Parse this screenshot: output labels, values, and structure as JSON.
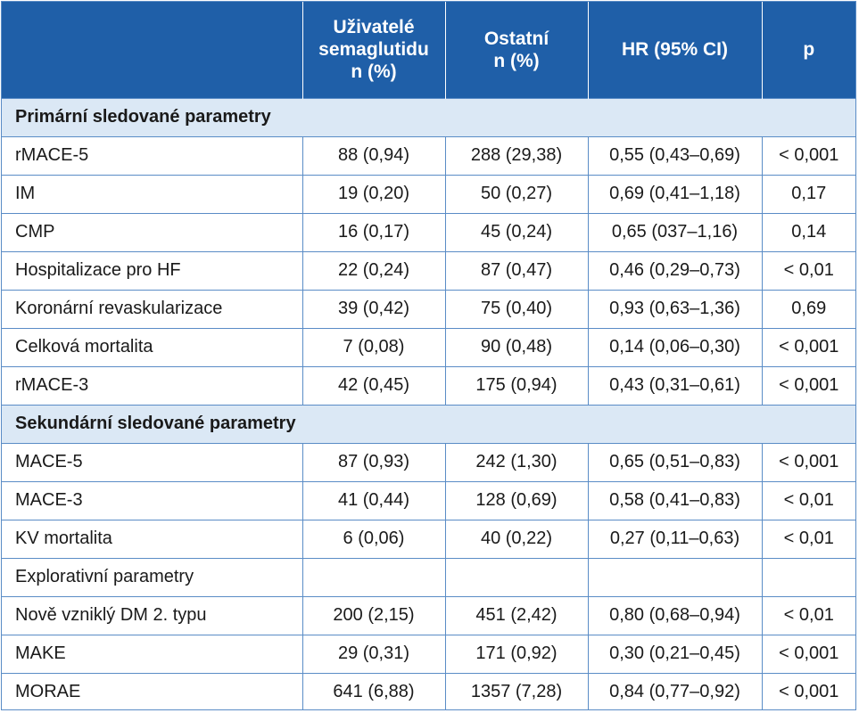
{
  "header": {
    "col0": "",
    "col1_lines": [
      "Uživatelé",
      "semaglutidu",
      "n (%)"
    ],
    "col2_lines": [
      "Ostatní",
      "n (%)"
    ],
    "col3": "HR (95% CI)",
    "col4": "p"
  },
  "sections": [
    {
      "title": "Primární sledované parametry",
      "rows": [
        {
          "label": "rMACE-5",
          "users": "88 (0,94)",
          "others": "288 (29,38)",
          "hr": "0,55 (0,43–0,69)",
          "p": "< 0,001"
        },
        {
          "label": "IM",
          "users": "19 (0,20)",
          "others": "50 (0,27)",
          "hr": "0,69 (0,41–1,18)",
          "p": "0,17"
        },
        {
          "label": "CMP",
          "users": "16 (0,17)",
          "others": "45 (0,24)",
          "hr": "0,65 (037–1,16)",
          "p": "0,14"
        },
        {
          "label": "Hospitalizace pro HF",
          "users": "22 (0,24)",
          "others": "87 (0,47)",
          "hr": "0,46 (0,29–0,73)",
          "p": "< 0,01"
        },
        {
          "label": "Koronární revaskularizace",
          "users": "39 (0,42)",
          "others": "75 (0,40)",
          "hr": "0,93 (0,63–1,36)",
          "p": "0,69"
        },
        {
          "label": "Celková mortalita",
          "users": "7 (0,08)",
          "others": "90 (0,48)",
          "hr": "0,14 (0,06–0,30)",
          "p": "< 0,001"
        },
        {
          "label": "rMACE-3",
          "users": "42 (0,45)",
          "others": "175 (0,94)",
          "hr": "0,43 (0,31–0,61)",
          "p": "< 0,001"
        }
      ]
    },
    {
      "title": "Sekundární sledované parametry",
      "rows": [
        {
          "label": "MACE-5",
          "users": "87 (0,93)",
          "others": "242 (1,30)",
          "hr": "0,65 (0,51–0,83)",
          "p": "< 0,001"
        },
        {
          "label": "MACE-3",
          "users": "41 (0,44)",
          "others": "128 (0,69)",
          "hr": "0,58 (0,41–0,83)",
          "p": "< 0,01"
        },
        {
          "label": "KV mortalita",
          "users": "6 (0,06)",
          "others": "40 (0,22)",
          "hr": "0,27 (0,11–0,63)",
          "p": "< 0,01"
        },
        {
          "label": "Explorativní parametry",
          "users": "",
          "others": "",
          "hr": "",
          "p": ""
        },
        {
          "label": "Nově vzniklý DM 2. typu",
          "users": "200 (2,15)",
          "others": "451 (2,42)",
          "hr": "0,80 (0,68–0,94)",
          "p": "< 0,01"
        },
        {
          "label": "MAKE",
          "users": "29 (0,31)",
          "others": "171 (0,92)",
          "hr": "0,30 (0,21–0,45)",
          "p": "< 0,001"
        },
        {
          "label": "MORAE",
          "users": "641 (6,88)",
          "others": "1357 (7,28)",
          "hr": "0,84 (0,77–0,92)",
          "p": "< 0,001"
        }
      ]
    }
  ]
}
